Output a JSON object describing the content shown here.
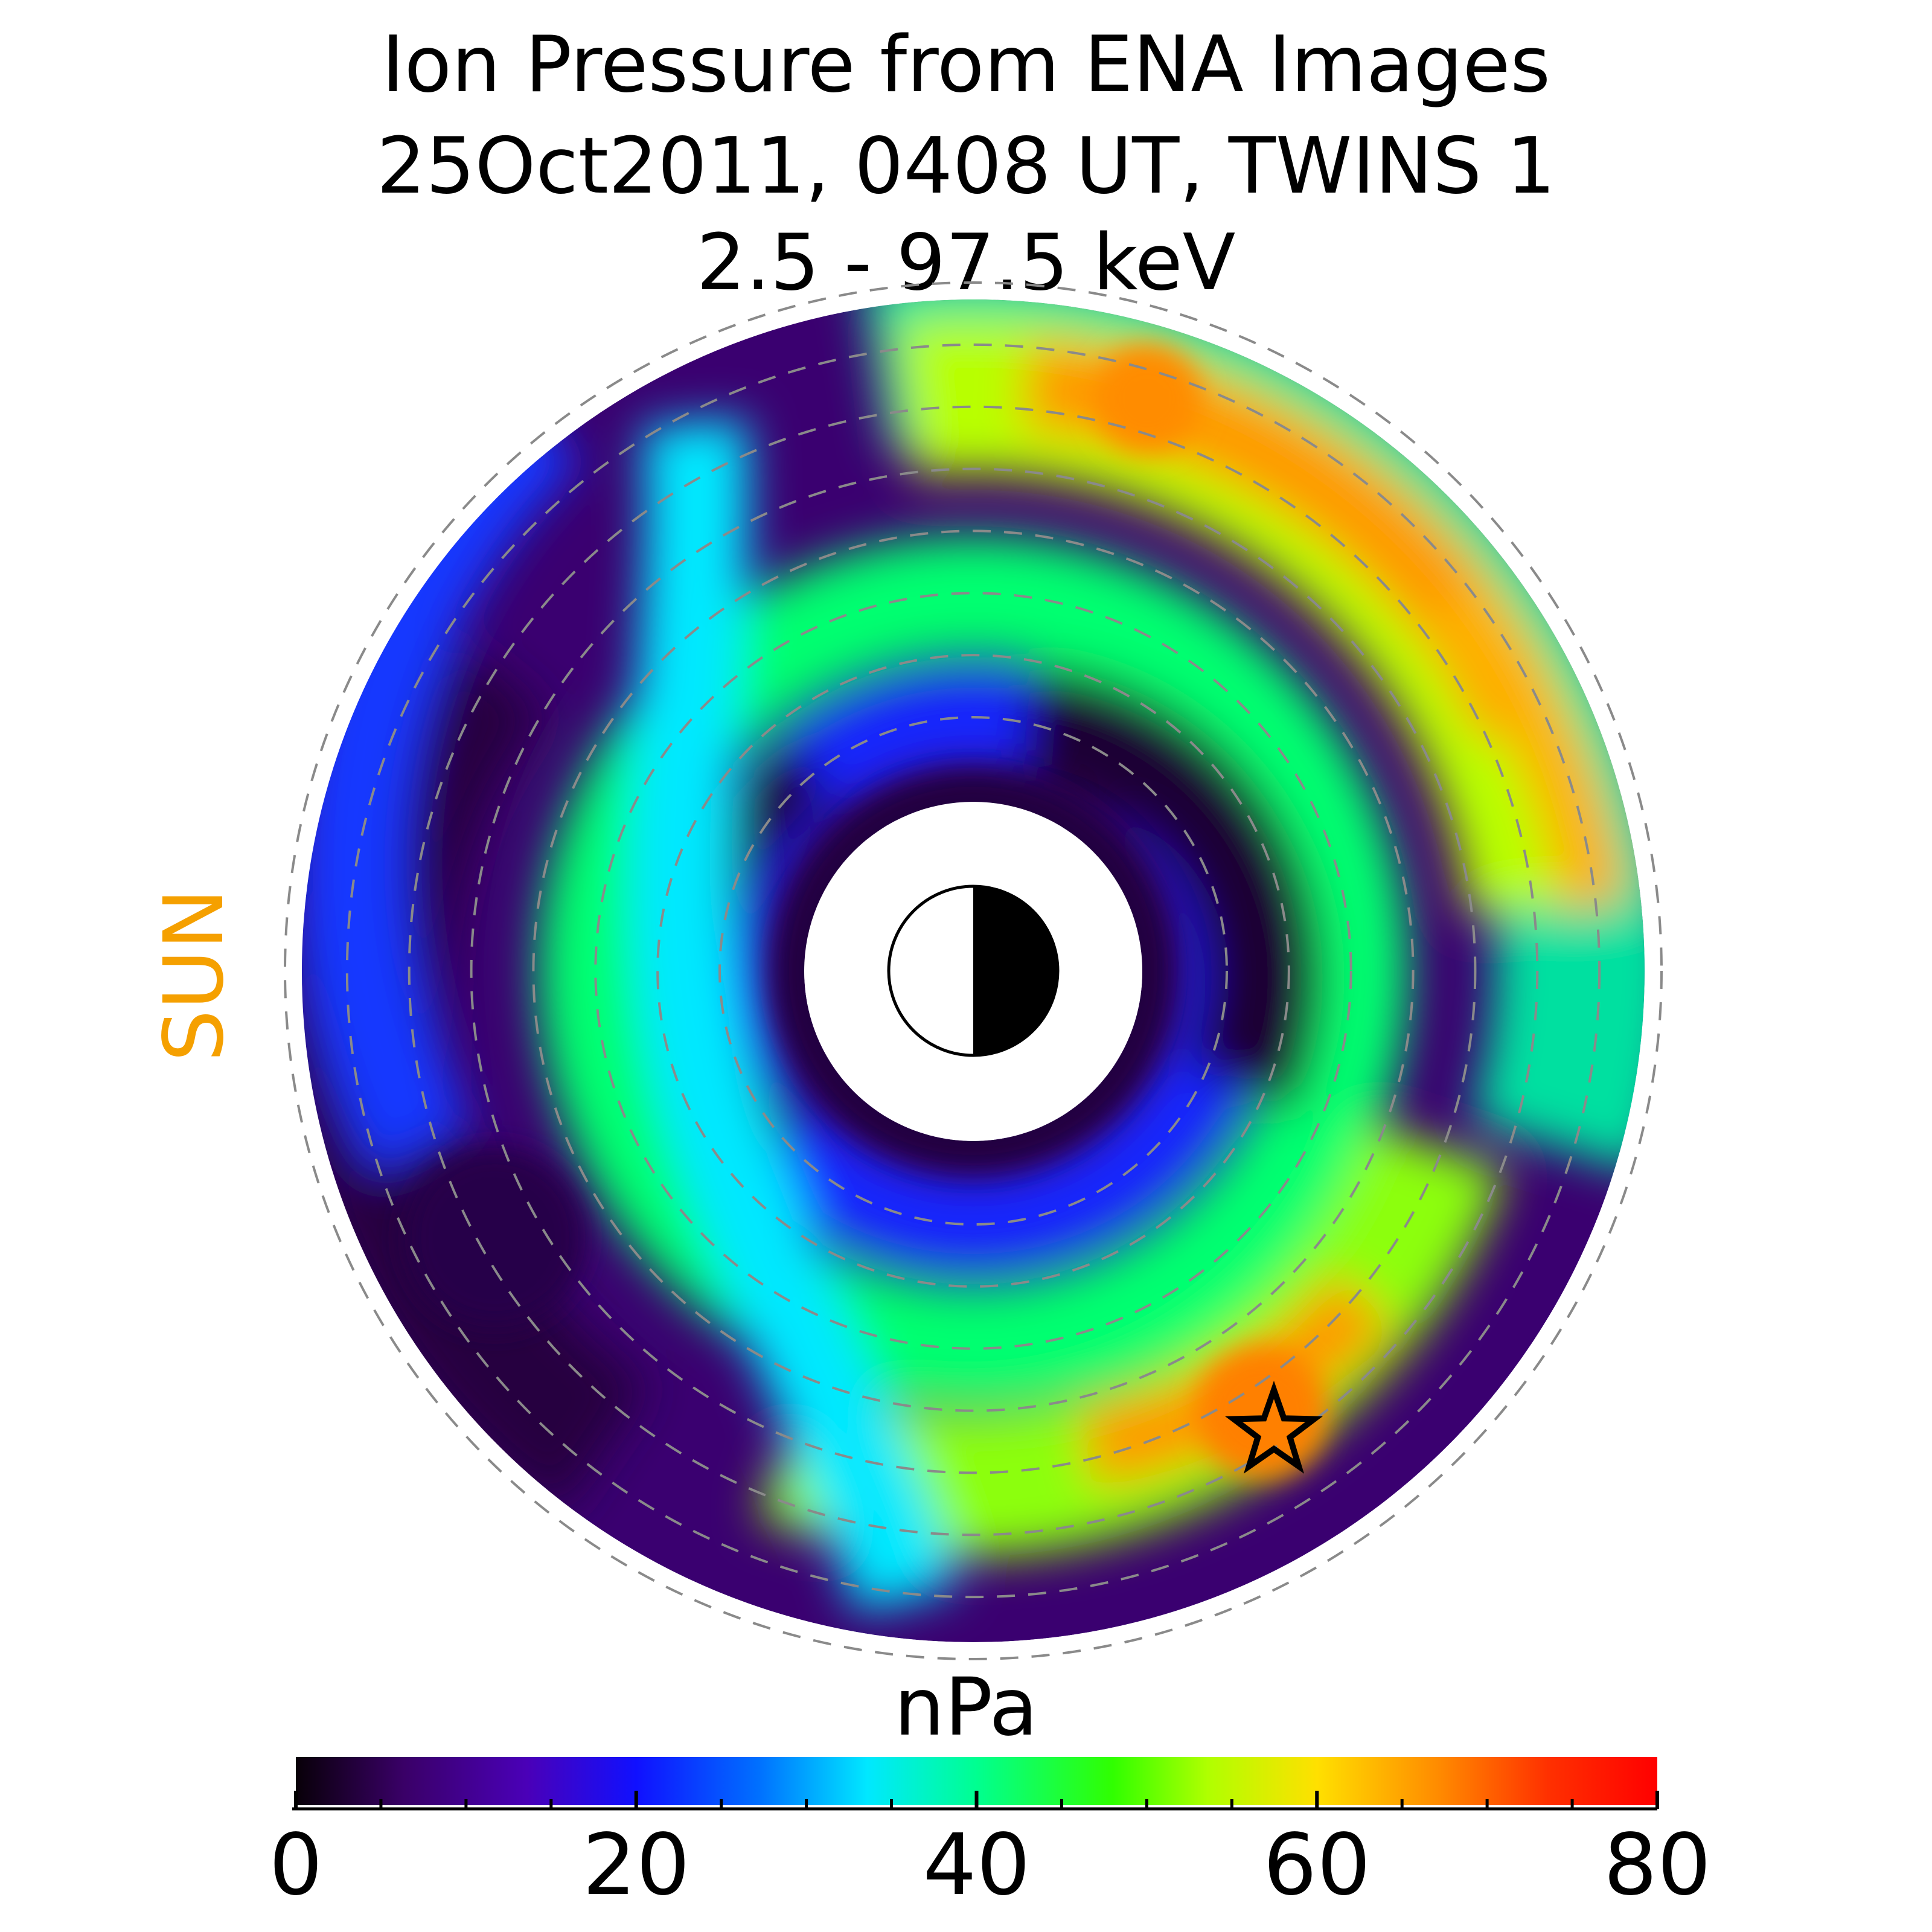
{
  "title": {
    "line1": "Ion Pressure from  ENA Images",
    "line2": "25Oct2011, 0408 UT,  TWINS 1",
    "line3": "2.5 - 97.5 keV"
  },
  "sun_label": "SUN",
  "colors": {
    "sun_label": "#F5A000",
    "grid_ring": "#8a8a8a",
    "earth_outline": "#000000"
  },
  "chart_data": {
    "type": "heatmap",
    "projection": "polar (equatorial plane)",
    "title": "Ion Pressure from  ENA Images 25Oct2011, 0408 UT,  TWINS 1 2.5 - 97.5 keV",
    "colorbar": {
      "label": "nPa",
      "range": [
        0,
        80
      ],
      "ticks": [
        0,
        20,
        40,
        60,
        80
      ],
      "tick_labels": [
        "0",
        "20",
        "40",
        "60",
        "80"
      ],
      "colormap": "rainbow (black-purple-blue-cyan-green-yellow-orange-red)"
    },
    "grid_rings": 8,
    "sun_direction": "left",
    "peak_marker": "star",
    "features": [
      {
        "region": "inner ring near Earth",
        "value_nPa": 5
      },
      {
        "region": "dawn/duskside broad band",
        "value_nPa": 30
      },
      {
        "region": "outer ring, pre-midnight arc",
        "value_nPa": 63
      },
      {
        "region": "peak near star",
        "value_nPa": 70
      }
    ]
  }
}
